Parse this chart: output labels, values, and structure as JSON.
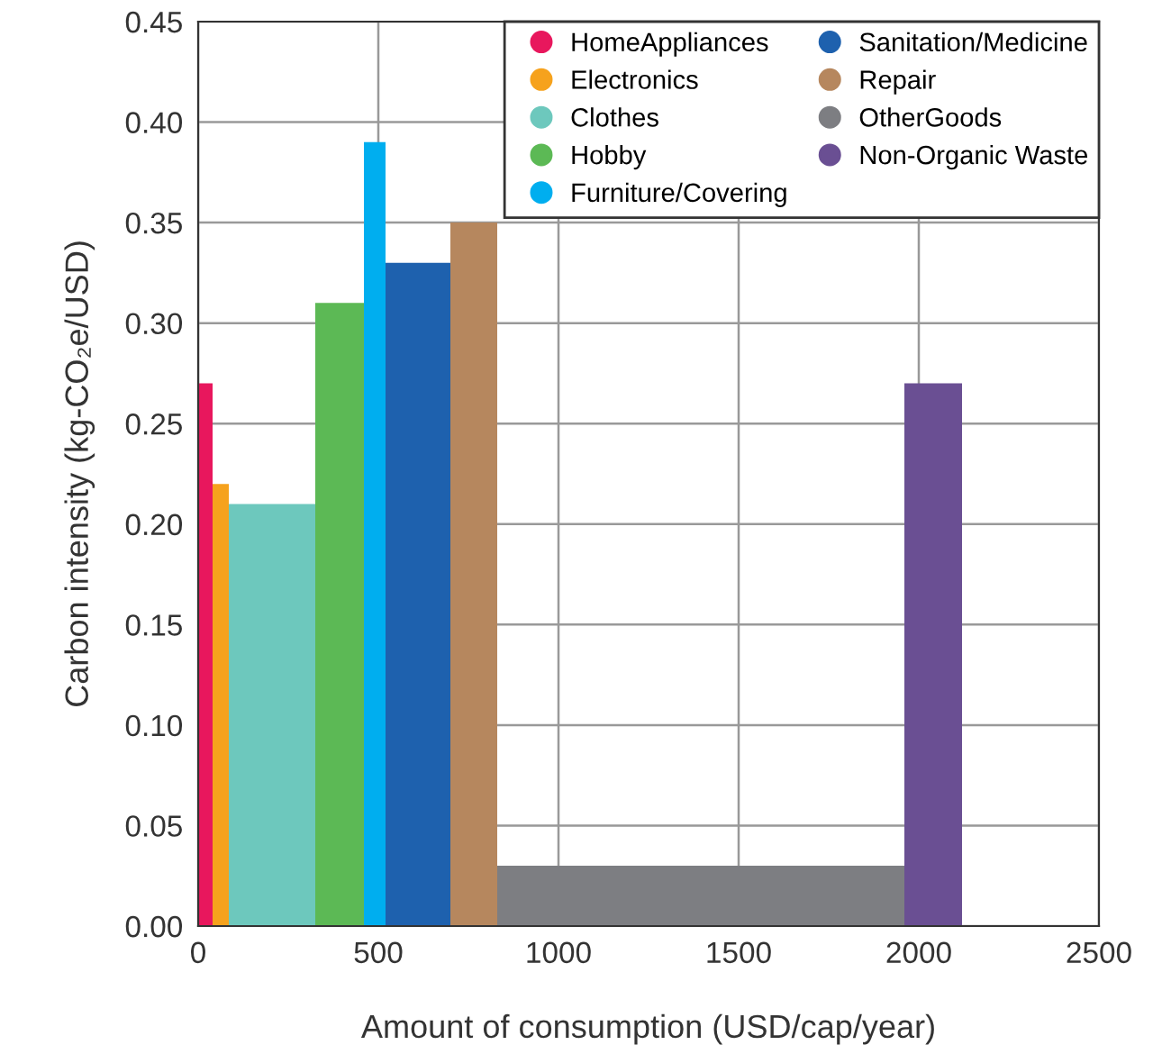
{
  "chart_data": {
    "type": "histogram",
    "xlabel": "Amount of consumption (USD/cap/year)",
    "ylabel": "Carbon intensity (kg-CO₂e/USD)",
    "bins": [
      0,
      40,
      85,
      325,
      460,
      520,
      700,
      830,
      1960,
      2120
    ],
    "series": [
      {
        "name": "HomeAppliances",
        "color": "#e8175d",
        "values": [
          0.27,
          null,
          null,
          null,
          null,
          null,
          null,
          null,
          null
        ]
      },
      {
        "name": "Electronics",
        "color": "#f6a21d",
        "values": [
          null,
          0.22,
          null,
          null,
          null,
          null,
          null,
          null,
          null
        ]
      },
      {
        "name": "Clothes",
        "color": "#6dc8bd",
        "values": [
          null,
          null,
          0.21,
          null,
          null,
          null,
          null,
          null,
          null
        ]
      },
      {
        "name": "Hobby",
        "color": "#5cb955",
        "values": [
          null,
          null,
          null,
          0.31,
          null,
          null,
          null,
          null,
          null
        ]
      },
      {
        "name": "Furniture/Covering",
        "color": "#00aeef",
        "values": [
          null,
          null,
          null,
          null,
          0.39,
          null,
          null,
          null,
          null
        ]
      },
      {
        "name": "Sanitation/Medicine",
        "color": "#1e61ae",
        "values": [
          null,
          null,
          null,
          null,
          null,
          0.33,
          null,
          null,
          null
        ]
      },
      {
        "name": "Repair",
        "color": "#b6875e",
        "values": [
          null,
          null,
          null,
          null,
          null,
          null,
          0.35,
          null,
          null
        ]
      },
      {
        "name": "OtherGoods",
        "color": "#7d7e82",
        "values": [
          null,
          null,
          null,
          null,
          null,
          null,
          null,
          0.03,
          null
        ]
      },
      {
        "name": "Non-Organic Waste",
        "color": "#6a4f93",
        "values": [
          null,
          null,
          null,
          null,
          null,
          null,
          null,
          null,
          0.27
        ]
      }
    ],
    "xlim": [
      0,
      2500
    ],
    "xticks": [
      0,
      500,
      1000,
      1500,
      2000,
      2500
    ],
    "ylim": [
      0,
      0.45
    ],
    "yticks": [
      {
        "value": 0,
        "label": "0.00"
      },
      {
        "value": 0.05,
        "label": "0.05"
      },
      {
        "value": 0.1,
        "label": "0.10"
      },
      {
        "value": 0.15,
        "label": "0.15"
      },
      {
        "value": 0.2,
        "label": "0.20"
      },
      {
        "value": 0.25,
        "label": "0.25"
      },
      {
        "value": 0.3,
        "label": "0.30"
      },
      {
        "value": 0.35,
        "label": "0.35"
      },
      {
        "value": 0.4,
        "label": "0.40"
      },
      {
        "value": 0.45,
        "label": "0.45"
      }
    ],
    "grid": true,
    "legend": "top right",
    "marker": "circle"
  }
}
